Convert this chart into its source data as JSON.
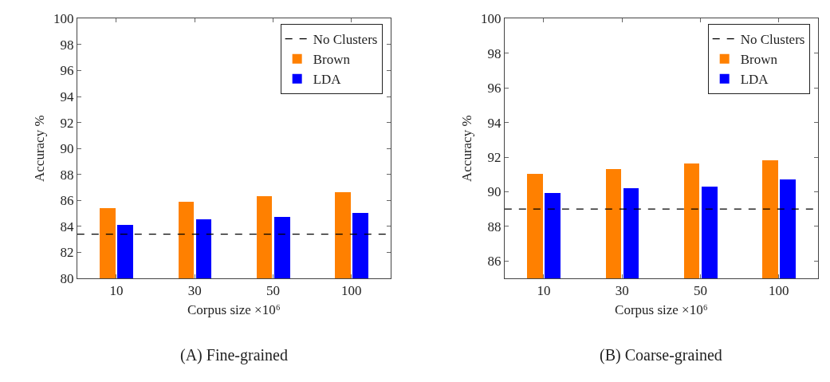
{
  "chart_data": [
    {
      "type": "bar",
      "categories": [
        "10",
        "30",
        "50",
        "100"
      ],
      "xlabel": "Corpus size ×10⁶",
      "ylabel": "Accuracy %",
      "ylim": [
        80,
        100
      ],
      "yticks": [
        80,
        82,
        84,
        86,
        88,
        90,
        92,
        94,
        96,
        98,
        100
      ],
      "legend": "top right",
      "series": [
        {
          "name": "Brown",
          "color": "#ff8000",
          "values": [
            85.4,
            85.9,
            86.3,
            86.6
          ]
        },
        {
          "name": "LDA",
          "color": "#0000ff",
          "values": [
            84.1,
            84.5,
            84.7,
            85.0
          ]
        }
      ],
      "ref_lines": [
        {
          "axis": "y",
          "value": 83.4,
          "label": "No Clusters",
          "color": "#000000",
          "line_style": "dashed"
        }
      ],
      "annotations": [
        "(A) Fine-grained"
      ]
    },
    {
      "type": "bar",
      "categories": [
        "10",
        "30",
        "50",
        "100"
      ],
      "xlabel": "Corpus size ×10⁶",
      "ylabel": "Accuracy %",
      "ylim": [
        85,
        100
      ],
      "yticks": [
        86,
        88,
        90,
        92,
        94,
        96,
        98,
        100
      ],
      "legend": "top right",
      "series": [
        {
          "name": "Brown",
          "color": "#ff8000",
          "values": [
            91.0,
            91.3,
            91.6,
            91.8
          ]
        },
        {
          "name": "LDA",
          "color": "#0000ff",
          "values": [
            89.9,
            90.2,
            90.3,
            90.7
          ]
        }
      ],
      "ref_lines": [
        {
          "axis": "y",
          "value": 89.0,
          "label": "No Clusters",
          "color": "#000000",
          "line_style": "dashed"
        }
      ],
      "annotations": [
        "(B) Coarse-grained"
      ]
    }
  ]
}
